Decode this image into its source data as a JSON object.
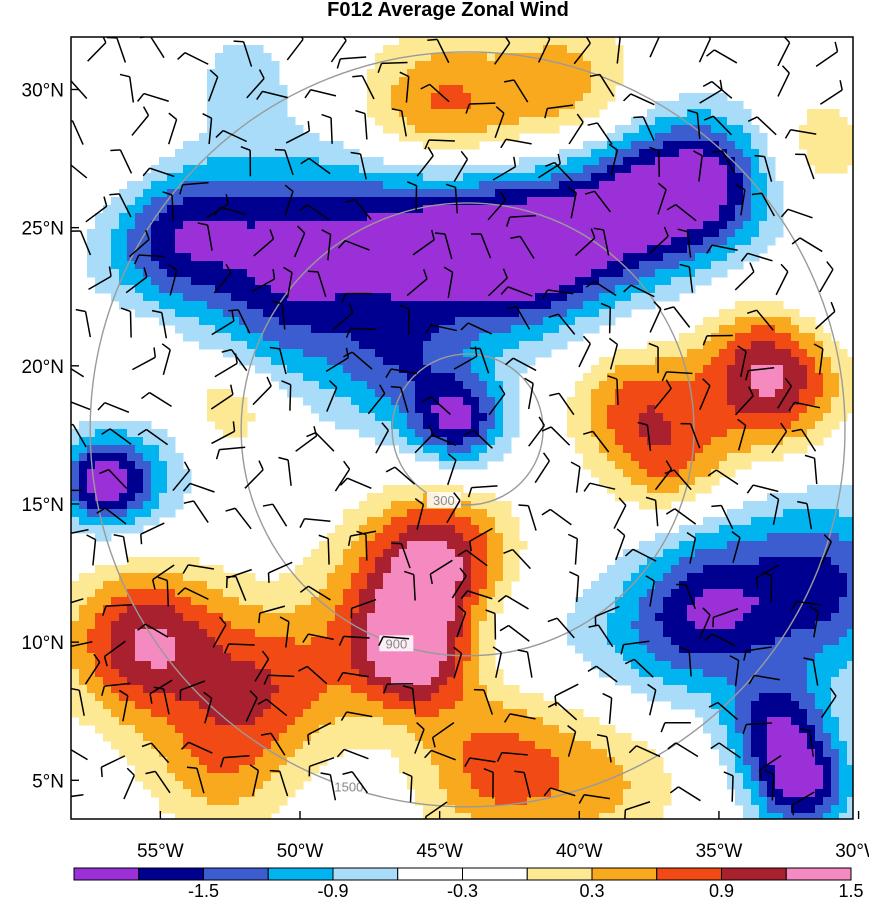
{
  "chart_data": {
    "type": "heatmap",
    "title": "F012 Average Zonal Wind",
    "x_ticks": [
      "55°W",
      "50°W",
      "45°W",
      "40°W",
      "35°W",
      "30°W"
    ],
    "x_tick_values": [
      -55,
      -50,
      -45,
      -40,
      -35,
      -30
    ],
    "y_ticks": [
      "30°N",
      "25°N",
      "20°N",
      "15°N",
      "10°N",
      "5°N"
    ],
    "y_tick_values": [
      30,
      25,
      20,
      15,
      10,
      5
    ],
    "xlim": [
      -58.2,
      -30.2
    ],
    "ylim": [
      3.6,
      31.9
    ],
    "colorbar": {
      "colors": [
        "#9b30d9",
        "#000090",
        "#3c5dd0",
        "#00b4f0",
        "#a8dcf8",
        "#ffffff",
        "#ffffff",
        "#fde893",
        "#f9a91d",
        "#f14a14",
        "#a9202e",
        "#f48ac0"
      ],
      "labels": [
        "-1.5",
        "-0.9",
        "-0.3",
        "0.3",
        "0.9",
        "1.5"
      ],
      "levels": [
        -1.8,
        -1.5,
        -1.2,
        -0.9,
        -0.6,
        -0.3,
        0,
        0.3,
        0.6,
        0.9,
        1.2,
        1.5,
        1.8
      ]
    },
    "range_rings": {
      "center": [
        -44.0,
        17.7
      ],
      "labels": [
        "300",
        "900",
        "1500"
      ]
    },
    "field_blobs": [
      {
        "lon": -54.5,
        "lat": 24.8,
        "v": -1.4,
        "s": 2.0
      },
      {
        "lon": -50.0,
        "lat": 24.5,
        "v": -1.2,
        "s": 2.2
      },
      {
        "lon": -45.5,
        "lat": 24.8,
        "v": -1.5,
        "s": 2.2
      },
      {
        "lon": -42.0,
        "lat": 24.0,
        "v": -1.6,
        "s": 2.0
      },
      {
        "lon": -38.5,
        "lat": 25.5,
        "v": -1.4,
        "s": 2.0
      },
      {
        "lon": -35.5,
        "lat": 26.6,
        "v": -1.5,
        "s": 1.8
      },
      {
        "lon": -46.5,
        "lat": 20.0,
        "v": -0.9,
        "s": 1.8
      },
      {
        "lon": -44.3,
        "lat": 18.0,
        "v": -1.4,
        "s": 1.2
      },
      {
        "lon": -50.5,
        "lat": 21.5,
        "v": -0.6,
        "s": 2.0
      },
      {
        "lon": -57.0,
        "lat": 15.8,
        "v": -1.3,
        "s": 1.1
      },
      {
        "lon": -56.0,
        "lat": 16.0,
        "v": -0.6,
        "s": 1.8
      },
      {
        "lon": -31.5,
        "lat": 12.0,
        "v": -1.3,
        "s": 2.3
      },
      {
        "lon": -35.5,
        "lat": 11.0,
        "v": -1.1,
        "s": 1.8
      },
      {
        "lon": -33.0,
        "lat": 7.0,
        "v": -1.2,
        "s": 1.3
      },
      {
        "lon": -32.0,
        "lat": 4.8,
        "v": -1.5,
        "s": 1.3
      },
      {
        "lon": -38.0,
        "lat": 10.0,
        "v": -0.5,
        "s": 2.0
      },
      {
        "lon": -42.5,
        "lat": 10.5,
        "v": -0.3,
        "s": 1.5
      },
      {
        "lon": -36.0,
        "lat": 14.5,
        "v": -0.4,
        "s": 1.5
      },
      {
        "lon": -45.0,
        "lat": 29.0,
        "v": 1.1,
        "s": 2.0
      },
      {
        "lon": -40.5,
        "lat": 30.0,
        "v": 0.8,
        "s": 1.8
      },
      {
        "lon": -33.2,
        "lat": 19.6,
        "v": 1.6,
        "s": 1.8
      },
      {
        "lon": -38.0,
        "lat": 18.5,
        "v": 1.0,
        "s": 1.6
      },
      {
        "lon": -36.5,
        "lat": 16.0,
        "v": 0.9,
        "s": 1.5
      },
      {
        "lon": -45.0,
        "lat": 13.0,
        "v": 1.4,
        "s": 1.8
      },
      {
        "lon": -46.0,
        "lat": 9.5,
        "v": 1.5,
        "s": 1.5
      },
      {
        "lon": -55.5,
        "lat": 10.0,
        "v": 1.5,
        "s": 2.0
      },
      {
        "lon": -51.0,
        "lat": 8.5,
        "v": 1.0,
        "s": 2.0
      },
      {
        "lon": -43.0,
        "lat": 5.5,
        "v": 1.0,
        "s": 2.0
      },
      {
        "lon": -39.0,
        "lat": 5.0,
        "v": 0.6,
        "s": 2.0
      },
      {
        "lon": -53.0,
        "lat": 5.5,
        "v": 0.7,
        "s": 1.8
      },
      {
        "lon": -52.5,
        "lat": 18.5,
        "v": 0.6,
        "s": 1.2
      },
      {
        "lon": -47.0,
        "lat": 11.5,
        "v": 0.6,
        "s": 2.0
      },
      {
        "lon": -56.5,
        "lat": 27.5,
        "v": 0.5,
        "s": 1.8
      },
      {
        "lon": -52.0,
        "lat": 30.5,
        "v": -0.4,
        "s": 1.6
      },
      {
        "lon": -31.5,
        "lat": 28.0,
        "v": 0.5,
        "s": 1.5
      },
      {
        "lon": -31.0,
        "lat": 22.5,
        "v": -0.4,
        "s": 1.4
      },
      {
        "lon": -56.0,
        "lat": 20.0,
        "v": 0.4,
        "s": 1.3
      }
    ]
  }
}
